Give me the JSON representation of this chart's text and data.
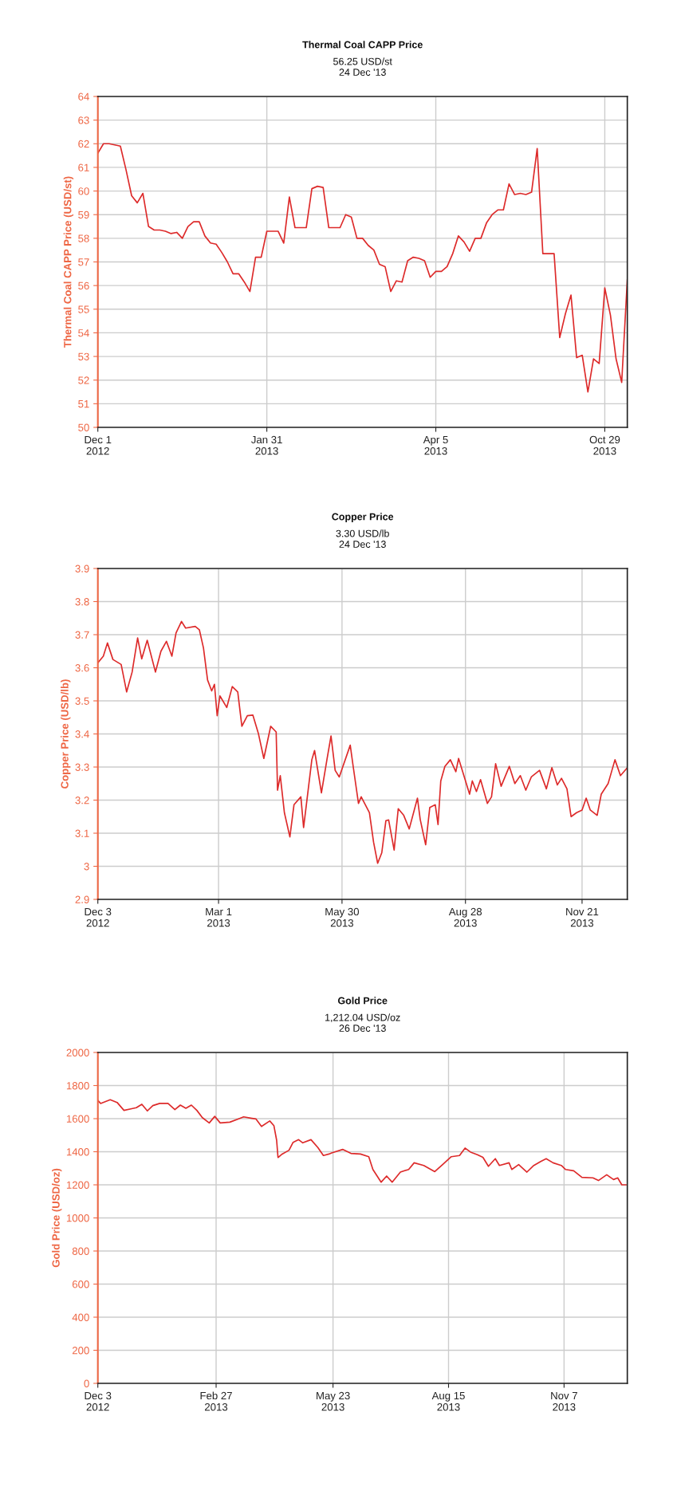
{
  "chart_data": [
    {
      "type": "line",
      "title": "Thermal Coal CAPP Price",
      "subtitle": "56.25 USD/st\n24 Dec '13",
      "ylabel": "Thermal Coal CAPP Price (USD/st)",
      "categories": [
        "Dec 1\n2012",
        null,
        null,
        null,
        null,
        null,
        null,
        null,
        null,
        null,
        null,
        null,
        null,
        null,
        null,
        null,
        null,
        null,
        null,
        null,
        null,
        null,
        null,
        null,
        null,
        null,
        null,
        null,
        null,
        null,
        "Jan 31\n2013",
        null,
        null,
        null,
        null,
        null,
        null,
        null,
        null,
        null,
        null,
        null,
        null,
        null,
        null,
        null,
        null,
        null,
        null,
        null,
        null,
        null,
        null,
        null,
        null,
        null,
        null,
        null,
        null,
        null,
        "Apr 5\n2013",
        null,
        null,
        null,
        null,
        null,
        null,
        null,
        null,
        null,
        null,
        null,
        null,
        null,
        null,
        null,
        null,
        null,
        null,
        null,
        null,
        null,
        null,
        null,
        null,
        null,
        null,
        null,
        null,
        null,
        "Oct 29\n2013",
        null,
        null,
        null,
        null
      ],
      "series": [
        {
          "color": "#dd2a2a",
          "values": [
            61.6,
            62.0,
            62.0,
            61.95,
            61.9,
            60.9,
            59.8,
            59.5,
            59.9,
            58.5,
            58.35,
            58.35,
            58.3,
            58.2,
            58.25,
            58.0,
            58.5,
            58.7,
            58.7,
            58.1,
            57.8,
            57.75,
            57.4,
            57.0,
            56.5,
            56.5,
            56.15,
            55.75,
            57.2,
            57.2,
            58.3,
            58.3,
            58.3,
            57.8,
            59.75,
            58.45,
            58.45,
            58.45,
            60.1,
            60.2,
            60.15,
            58.45,
            58.45,
            58.45,
            59.0,
            58.9,
            58.0,
            58.0,
            57.7,
            57.5,
            56.9,
            56.8,
            55.75,
            56.2,
            56.15,
            57.05,
            57.2,
            57.15,
            57.05,
            56.35,
            56.6,
            56.6,
            56.8,
            57.35,
            58.1,
            57.85,
            57.45,
            58.0,
            58.0,
            58.65,
            59.0,
            59.2,
            59.2,
            60.3,
            59.85,
            59.9,
            59.85,
            59.95,
            61.8,
            57.35,
            57.35,
            57.35,
            53.8,
            54.8,
            55.6,
            52.95,
            53.05,
            51.5,
            52.9,
            52.7,
            55.9,
            54.75,
            52.9,
            51.9,
            56.25
          ]
        }
      ],
      "ylim": [
        50,
        64
      ],
      "yticks": [
        50,
        51,
        52,
        53,
        54,
        55,
        56,
        57,
        58,
        59,
        60,
        61,
        62,
        63,
        64
      ],
      "grid": true
    },
    {
      "type": "line",
      "title": "Copper Price",
      "subtitle": "3.30 USD/lb\n24 Dec '13",
      "ylabel": "Copper Price (USD/lb)",
      "x": [
        "2012-12-03",
        "2012-12-07",
        "2012-12-10",
        "2012-12-14",
        "2012-12-20",
        "2012-12-24",
        "2012-12-28",
        "2013-01-01",
        "2013-01-04",
        "2013-01-08",
        "2013-01-14",
        "2013-01-18",
        "2013-01-22",
        "2013-01-26",
        "2013-01-29",
        "2013-02-02",
        "2013-02-05",
        "2013-02-12",
        "2013-02-15",
        "2013-02-18",
        "2013-02-21",
        "2013-02-24",
        "2013-02-26",
        "2013-02-28",
        "2013-03-02",
        "2013-03-07",
        "2013-03-11",
        "2013-03-15",
        "2013-03-18",
        "2013-03-22",
        "2013-03-26",
        "2013-03-30",
        "2013-04-03",
        "2013-04-08",
        "2013-04-12",
        "2013-04-13",
        "2013-04-15",
        "2013-04-18",
        "2013-04-22",
        "2013-04-25",
        "2013-04-30",
        "2013-05-02",
        "2013-05-08",
        "2013-05-10",
        "2013-05-15",
        "2013-05-19",
        "2013-05-22",
        "2013-05-25",
        "2013-05-28",
        "2013-06-05",
        "2013-06-07",
        "2013-06-11",
        "2013-06-13",
        "2013-06-19",
        "2013-06-22",
        "2013-06-25",
        "2013-06-28",
        "2013-07-01",
        "2013-07-03",
        "2013-07-07",
        "2013-07-10",
        "2013-07-14",
        "2013-07-18",
        "2013-07-24",
        "2013-07-26",
        "2013-07-30",
        "2013-08-02",
        "2013-08-06",
        "2013-08-08",
        "2013-08-10",
        "2013-08-13",
        "2013-08-17",
        "2013-08-21",
        "2013-08-23",
        "2013-08-31",
        "2013-09-02",
        "2013-09-05",
        "2013-09-08",
        "2013-09-13",
        "2013-09-16",
        "2013-09-19",
        "2013-09-23",
        "2013-09-29",
        "2013-10-03",
        "2013-10-07",
        "2013-10-11",
        "2013-10-15",
        "2013-10-21",
        "2013-10-26",
        "2013-10-30",
        "2013-11-03",
        "2013-11-06",
        "2013-11-10",
        "2013-11-13",
        "2013-11-17",
        "2013-11-21",
        "2013-11-24",
        "2013-11-27",
        "2013-12-02",
        "2013-12-05",
        "2013-12-10",
        "2013-12-15",
        "2013-12-19",
        "2013-12-24"
      ],
      "series": [
        {
          "color": "#dd2a2a",
          "values": [
            3.615,
            3.635,
            3.675,
            3.625,
            3.61,
            3.527,
            3.587,
            3.69,
            3.627,
            3.683,
            3.587,
            3.65,
            3.68,
            3.635,
            3.705,
            3.74,
            3.72,
            3.725,
            3.715,
            3.66,
            3.563,
            3.53,
            3.55,
            3.455,
            3.515,
            3.48,
            3.543,
            3.527,
            3.423,
            3.455,
            3.457,
            3.402,
            3.326,
            3.423,
            3.406,
            3.23,
            3.274,
            3.162,
            3.089,
            3.186,
            3.21,
            3.117,
            3.322,
            3.35,
            3.222,
            3.322,
            3.394,
            3.29,
            3.27,
            3.366,
            3.306,
            3.19,
            3.21,
            3.162,
            3.073,
            3.009,
            3.041,
            3.138,
            3.14,
            3.049,
            3.174,
            3.154,
            3.113,
            3.206,
            3.142,
            3.065,
            3.178,
            3.186,
            3.126,
            3.258,
            3.302,
            3.322,
            3.286,
            3.326,
            3.218,
            3.258,
            3.226,
            3.262,
            3.19,
            3.21,
            3.31,
            3.242,
            3.302,
            3.25,
            3.274,
            3.23,
            3.27,
            3.29,
            3.234,
            3.298,
            3.246,
            3.266,
            3.234,
            3.15,
            3.162,
            3.17,
            3.206,
            3.17,
            3.154,
            3.218,
            3.25,
            3.322,
            3.274,
            3.298
          ]
        }
      ],
      "xlim": [
        "2012-12-03",
        "2013-12-24"
      ],
      "xticks": [
        {
          "value": "2012-12-03",
          "label": "Dec 3\n2012"
        },
        {
          "value": "2013-03-01",
          "label": "Mar 1\n2013"
        },
        {
          "value": "2013-05-30",
          "label": "May 30\n2013"
        },
        {
          "value": "2013-08-28",
          "label": "Aug 28\n2013"
        },
        {
          "value": "2013-11-21",
          "label": "Nov 21\n2013"
        }
      ],
      "ylim": [
        2.9,
        3.9
      ],
      "yticks": [
        2.9,
        3,
        3.1,
        3.2,
        3.3,
        3.4,
        3.5,
        3.6,
        3.7,
        3.8,
        3.9
      ],
      "grid": true
    },
    {
      "type": "line",
      "title": "Gold Price",
      "subtitle": "1,212.04 USD/oz\n26 Dec '13",
      "ylabel": "Gold Price (USD/oz)",
      "x": [
        "2012-12-03",
        "2012-12-05",
        "2012-12-12",
        "2012-12-17",
        "2012-12-22",
        "2012-12-27",
        "2012-12-31",
        "2013-01-04",
        "2013-01-08",
        "2013-01-12",
        "2013-01-17",
        "2013-01-23",
        "2013-01-28",
        "2013-02-01",
        "2013-02-05",
        "2013-02-09",
        "2013-02-13",
        "2013-02-17",
        "2013-02-22",
        "2013-02-26",
        "2013-03-02",
        "2013-03-09",
        "2013-03-15",
        "2013-03-19",
        "2013-03-25",
        "2013-03-28",
        "2013-04-01",
        "2013-04-07",
        "2013-04-10",
        "2013-04-12",
        "2013-04-13",
        "2013-04-16",
        "2013-04-21",
        "2013-04-24",
        "2013-04-28",
        "2013-05-01",
        "2013-05-07",
        "2013-05-12",
        "2013-05-16",
        "2013-05-20",
        "2013-05-22",
        "2013-05-30",
        "2013-06-05",
        "2013-06-12",
        "2013-06-18",
        "2013-06-21",
        "2013-06-27",
        "2013-07-01",
        "2013-07-05",
        "2013-07-11",
        "2013-07-17",
        "2013-07-21",
        "2013-07-28",
        "2013-08-05",
        "2013-08-11",
        "2013-08-17",
        "2013-08-23",
        "2013-08-27",
        "2013-08-31",
        "2013-09-05",
        "2013-09-09",
        "2013-09-13",
        "2013-09-18",
        "2013-09-21",
        "2013-09-28",
        "2013-09-30",
        "2013-10-05",
        "2013-10-11",
        "2013-10-16",
        "2013-10-21",
        "2013-10-25",
        "2013-10-30",
        "2013-11-05",
        "2013-11-08",
        "2013-11-14",
        "2013-11-20",
        "2013-11-28",
        "2013-12-02",
        "2013-12-08",
        "2013-12-13",
        "2013-12-16",
        "2013-12-19",
        "2013-12-22"
      ],
      "series": [
        {
          "color": "#dd2a2a",
          "values": [
            1711,
            1692,
            1714,
            1698,
            1650,
            1659,
            1666,
            1687,
            1647,
            1679,
            1692,
            1692,
            1655,
            1682,
            1663,
            1682,
            1650,
            1606,
            1574,
            1614,
            1574,
            1579,
            1598,
            1611,
            1602,
            1598,
            1553,
            1586,
            1558,
            1470,
            1365,
            1386,
            1409,
            1457,
            1473,
            1454,
            1473,
            1425,
            1377,
            1386,
            1393,
            1414,
            1390,
            1386,
            1370,
            1293,
            1216,
            1253,
            1216,
            1277,
            1293,
            1333,
            1317,
            1280,
            1325,
            1370,
            1377,
            1422,
            1398,
            1382,
            1366,
            1312,
            1358,
            1317,
            1333,
            1293,
            1322,
            1277,
            1317,
            1341,
            1358,
            1333,
            1317,
            1293,
            1285,
            1245,
            1242,
            1226,
            1261,
            1232,
            1242,
            1200,
            1200
          ]
        }
      ],
      "xlim": [
        "2012-12-03",
        "2013-12-23"
      ],
      "xticks": [
        {
          "value": "2012-12-03",
          "label": "Dec 3\n2012"
        },
        {
          "value": "2013-02-27",
          "label": "Feb 27\n2013"
        },
        {
          "value": "2013-05-23",
          "label": "May 23\n2013"
        },
        {
          "value": "2013-08-15",
          "label": "Aug 15\n2013"
        },
        {
          "value": "2013-11-07",
          "label": "Nov 7\n2013"
        }
      ],
      "ylim": [
        0,
        2000
      ],
      "yticks": [
        0,
        200,
        400,
        600,
        800,
        1000,
        1200,
        1400,
        1600,
        1800,
        2000
      ],
      "grid": true
    }
  ]
}
